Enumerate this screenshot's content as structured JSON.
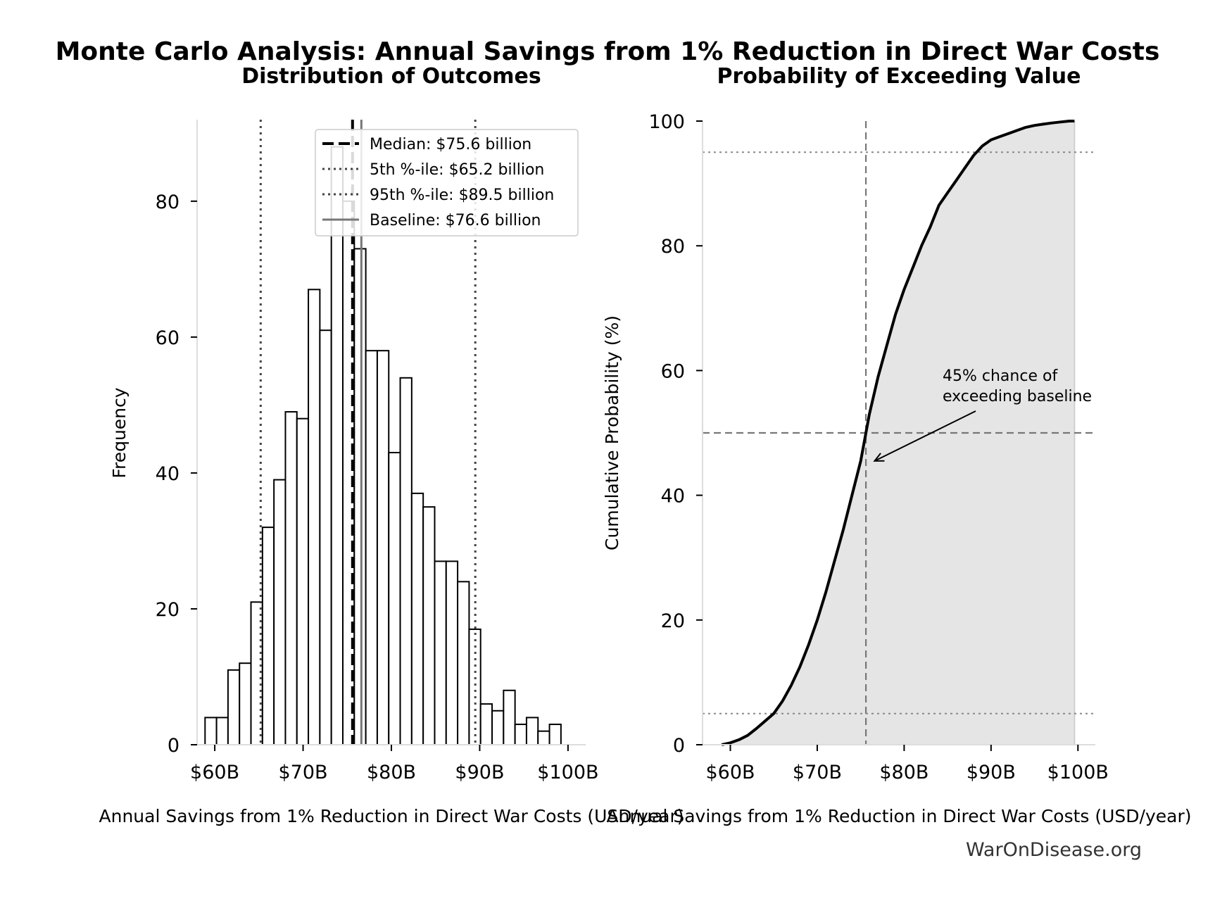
{
  "figure": {
    "title": "Monte Carlo Analysis: Annual Savings from 1% Reduction in Direct War Costs",
    "footer": "WarOnDisease.org"
  },
  "chart_data": [
    {
      "type": "bar",
      "subtype": "histogram",
      "title": "Distribution of Outcomes",
      "xlabel": "Annual Savings from 1% Reduction in Direct War Costs (USD/year)",
      "ylabel": "Frequency",
      "xlim": [
        58,
        102
      ],
      "ylim": [
        0,
        92
      ],
      "bin_width": 1.3,
      "x_ticks": [
        {
          "value": 60,
          "label": "$60B"
        },
        {
          "value": 70,
          "label": "$70B"
        },
        {
          "value": 80,
          "label": "$80B"
        },
        {
          "value": 90,
          "label": "$90B"
        },
        {
          "value": 100,
          "label": "$100B"
        }
      ],
      "y_ticks": [
        {
          "value": 0,
          "label": "0"
        },
        {
          "value": 20,
          "label": "20"
        },
        {
          "value": 40,
          "label": "40"
        },
        {
          "value": 60,
          "label": "60"
        },
        {
          "value": 80,
          "label": "80"
        }
      ],
      "bin_starts": [
        58.9,
        60.2,
        61.5,
        62.8,
        64.1,
        65.4,
        66.7,
        68.0,
        69.3,
        70.6,
        71.9,
        73.2,
        74.5,
        75.8,
        77.1,
        78.4,
        79.7,
        81.0,
        82.3,
        83.6,
        84.9,
        86.2,
        87.5,
        88.8,
        90.1,
        91.4,
        92.7,
        94.0,
        95.3,
        96.6,
        97.9
      ],
      "counts": [
        4,
        4,
        11,
        12,
        21,
        32,
        39,
        49,
        48,
        67,
        61,
        88,
        80,
        73,
        58,
        58,
        43,
        54,
        37,
        35,
        27,
        27,
        24,
        17,
        6,
        5,
        8,
        3,
        4,
        2,
        3
      ],
      "reference_lines": [
        {
          "label": "Median: $75.6 billion",
          "value": 75.6,
          "style": "dashed",
          "color": "#000000"
        },
        {
          "label": "5th %-ile: $65.2 billion",
          "value": 65.2,
          "style": "dotted",
          "color": "#444444"
        },
        {
          "label": "95th %-ile: $89.5 billion",
          "value": 89.5,
          "style": "dotted",
          "color": "#444444"
        },
        {
          "label": "Baseline: $76.6 billion",
          "value": 76.6,
          "style": "solid",
          "color": "#777777"
        }
      ],
      "legend_position": "top-right"
    },
    {
      "type": "line",
      "title": "Probability of Exceeding Value",
      "xlabel": "Annual Savings from 1% Reduction in Direct War Costs (USD/year)",
      "ylabel": "Cumulative Probability (%)",
      "xlim": [
        56.8,
        102
      ],
      "ylim": [
        0,
        100
      ],
      "x_ticks": [
        {
          "value": 60,
          "label": "$60B"
        },
        {
          "value": 70,
          "label": "$70B"
        },
        {
          "value": 80,
          "label": "$80B"
        },
        {
          "value": 90,
          "label": "$90B"
        },
        {
          "value": 100,
          "label": "$100B"
        }
      ],
      "y_ticks": [
        {
          "value": 0,
          "label": "0"
        },
        {
          "value": 20,
          "label": "20"
        },
        {
          "value": 40,
          "label": "40"
        },
        {
          "value": 60,
          "label": "60"
        },
        {
          "value": 80,
          "label": "80"
        },
        {
          "value": 100,
          "label": "100"
        }
      ],
      "x": [
        59.0,
        60.0,
        61.0,
        62.0,
        63.0,
        64.0,
        65.0,
        66.0,
        67.0,
        68.0,
        69.0,
        70.0,
        71.0,
        72.0,
        73.0,
        74.0,
        75.0,
        75.6,
        76.0,
        77.0,
        78.0,
        79.0,
        80.0,
        81.0,
        82.0,
        83.0,
        84.0,
        85.0,
        86.0,
        87.0,
        88.0,
        89.0,
        90.0,
        91.0,
        92.0,
        93.0,
        94.0,
        95.0,
        96.0,
        97.0,
        98.0,
        99.0,
        99.6
      ],
      "y": [
        0,
        0.3,
        0.8,
        1.5,
        2.6,
        3.8,
        5.0,
        7.0,
        9.5,
        12.5,
        16.0,
        20.0,
        24.5,
        29.5,
        34.5,
        40.0,
        45.5,
        50.0,
        53.0,
        59.0,
        64.0,
        69.0,
        73.0,
        76.5,
        80.0,
        83.0,
        86.5,
        88.5,
        90.5,
        92.5,
        94.5,
        96.0,
        97.0,
        97.5,
        98.0,
        98.5,
        99.0,
        99.3,
        99.5,
        99.7,
        99.85,
        100,
        100
      ],
      "fill": "area-under-curve",
      "reference_lines": [
        {
          "orientation": "vertical",
          "value": 75.6,
          "style": "dashed"
        },
        {
          "orientation": "horizontal",
          "value": 50,
          "style": "dashed"
        },
        {
          "orientation": "horizontal",
          "value": 95,
          "style": "dotted"
        },
        {
          "orientation": "horizontal",
          "value": 5,
          "style": "dotted"
        }
      ],
      "annotation": {
        "lines": [
          "45% chance of",
          "exceeding baseline"
        ],
        "arrow_to": [
          76.6,
          45.5
        ]
      }
    }
  ]
}
